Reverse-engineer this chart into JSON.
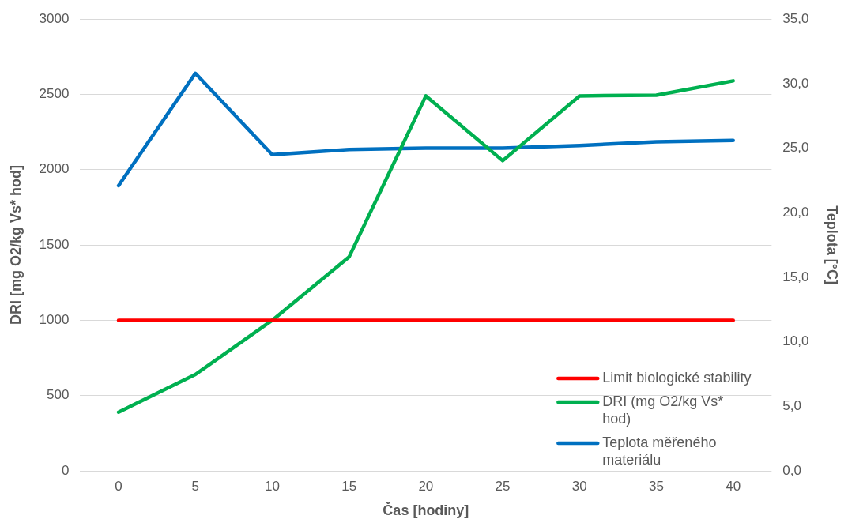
{
  "chart_data": {
    "type": "line",
    "xlabel": "Čas [hodiny]",
    "ylabel": "DRI [mg O2/kg Vs* hod]",
    "y2label": "Teplota [°C]",
    "categories": [
      "0",
      "5",
      "10",
      "15",
      "20",
      "25",
      "30",
      "35",
      "40"
    ],
    "series": [
      {
        "name": "Limit biologické stability",
        "color": "#ff0000",
        "values": [
          1000,
          1000,
          1000,
          1000,
          1000,
          1000,
          1000,
          1000,
          1000
        ]
      },
      {
        "name": "DRI (mg O2/kg Vs* hod)",
        "color": "#00b050",
        "values": [
          390,
          640,
          1000,
          1420,
          2490,
          2060,
          2490,
          2495,
          2590
        ]
      },
      {
        "name": "Teplota měřeného materiálu",
        "color": "#0070c0",
        "axis": "y2",
        "values": [
          22.1,
          30.8,
          24.5,
          24.9,
          25.0,
          25.0,
          25.2,
          25.5,
          25.6
        ]
      }
    ],
    "ylim": [
      0,
      3000
    ],
    "yticks": [
      0,
      500,
      1000,
      1500,
      2000,
      2500,
      3000
    ],
    "y2lim": [
      0,
      35
    ],
    "y2ticks": [
      {
        "value": 0,
        "label": "0,0"
      },
      {
        "value": 5,
        "label": "5,0"
      },
      {
        "value": 10,
        "label": "10,0"
      },
      {
        "value": 15,
        "label": "15,0"
      },
      {
        "value": 20,
        "label": "20,0"
      },
      {
        "value": 25,
        "label": "25,0"
      },
      {
        "value": 30,
        "label": "30,0"
      },
      {
        "value": 35,
        "label": "35,0"
      }
    ],
    "grid": "y",
    "legend": "bottom right",
    "marker": "none",
    "line_style": "solid"
  }
}
